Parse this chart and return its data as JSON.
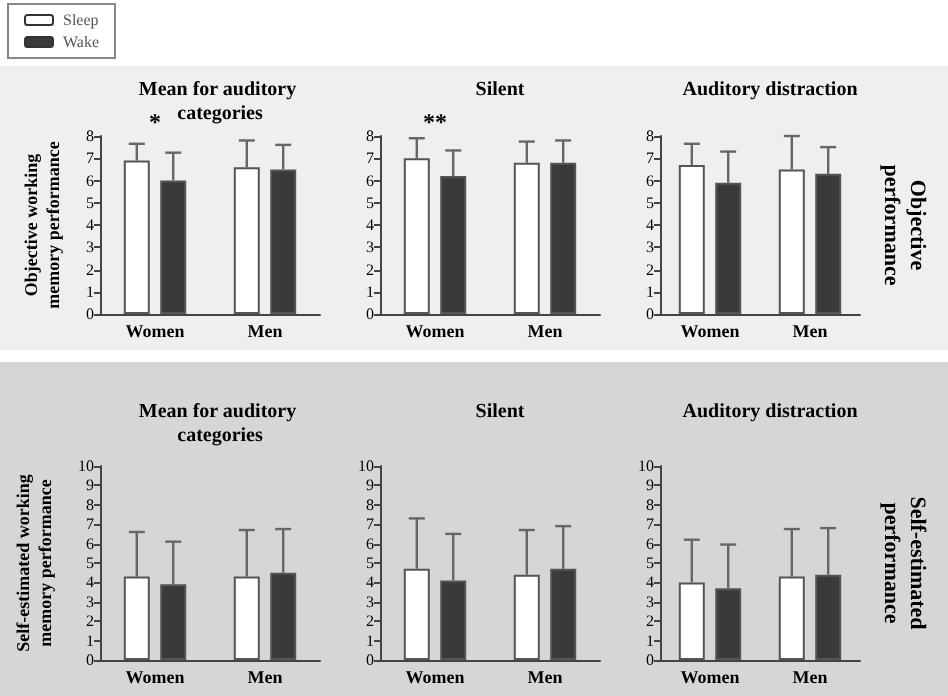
{
  "chart_data": [
    {
      "type": "bar",
      "title": "Mean for auditory categories",
      "ylabel": "Objective working memory performance",
      "categories": [
        "Women",
        "Men"
      ],
      "legend": "top left",
      "ylim": [
        0,
        8
      ],
      "yticks": [
        0,
        1,
        2,
        3,
        4,
        5,
        6,
        7,
        8
      ],
      "annotations": [
        "*"
      ],
      "series": [
        {
          "name": "Sleep",
          "color": "#ffffff",
          "values": [
            6.9,
            6.6
          ],
          "errors": [
            [
              6.9,
              7.65
            ],
            [
              6.6,
              7.8
            ]
          ]
        },
        {
          "name": "Wake",
          "color": "#3a3a3a",
          "values": [
            6.0,
            6.5
          ],
          "errors": [
            [
              6.0,
              7.25
            ],
            [
              6.5,
              7.6
            ]
          ]
        }
      ]
    },
    {
      "type": "bar",
      "title": "Silent",
      "categories": [
        "Women",
        "Men"
      ],
      "ylim": [
        0,
        8
      ],
      "yticks": [
        0,
        1,
        2,
        3,
        4,
        5,
        6,
        7,
        8
      ],
      "annotations": [
        "**"
      ],
      "series": [
        {
          "color": "#ffffff",
          "values": [
            7.0,
            6.8
          ],
          "errors": [
            [
              7.0,
              7.9
            ],
            [
              6.8,
              7.75
            ]
          ]
        },
        {
          "color": "#3a3a3a",
          "values": [
            6.2,
            6.8
          ],
          "errors": [
            [
              6.2,
              7.35
            ],
            [
              6.8,
              7.8
            ]
          ]
        }
      ]
    },
    {
      "type": "bar",
      "title": "Auditory distraction",
      "categories": [
        "Women",
        "Men"
      ],
      "ylim": [
        0,
        8
      ],
      "yticks": [
        0,
        1,
        2,
        3,
        4,
        5,
        6,
        7,
        8
      ],
      "annotations": [
        "Objective performance"
      ],
      "series": [
        {
          "color": "#ffffff",
          "values": [
            6.7,
            6.5
          ],
          "errors": [
            [
              6.7,
              7.65
            ],
            [
              6.5,
              8.0
            ]
          ]
        },
        {
          "color": "#3a3a3a",
          "values": [
            5.9,
            6.3
          ],
          "errors": [
            [
              5.9,
              7.3
            ],
            [
              6.3,
              7.5
            ]
          ]
        }
      ]
    },
    {
      "type": "bar",
      "title": "Mean for auditory categories",
      "ylabel": "Self-estimated working memory performance",
      "categories": [
        "Women",
        "Men"
      ],
      "ylim": [
        0,
        10
      ],
      "yticks": [
        0,
        1,
        2,
        3,
        4,
        5,
        6,
        7,
        8,
        9,
        10
      ],
      "series": [
        {
          "color": "#ffffff",
          "values": [
            4.3,
            4.3
          ],
          "errors": [
            [
              4.3,
              6.6
            ],
            [
              4.3,
              6.7
            ]
          ]
        },
        {
          "color": "#3a3a3a",
          "values": [
            3.9,
            4.5
          ],
          "errors": [
            [
              3.9,
              6.1
            ],
            [
              4.5,
              6.75
            ]
          ]
        }
      ]
    },
    {
      "type": "bar",
      "title": "Silent",
      "categories": [
        "Women",
        "Men"
      ],
      "ylim": [
        0,
        10
      ],
      "yticks": [
        0,
        1,
        2,
        3,
        4,
        5,
        6,
        7,
        8,
        9,
        10
      ],
      "series": [
        {
          "color": "#ffffff",
          "values": [
            4.7,
            4.4
          ],
          "errors": [
            [
              4.7,
              7.3
            ],
            [
              4.4,
              6.7
            ]
          ]
        },
        {
          "color": "#3a3a3a",
          "values": [
            4.1,
            4.7
          ],
          "errors": [
            [
              4.1,
              6.5
            ],
            [
              4.7,
              6.9
            ]
          ]
        }
      ]
    },
    {
      "type": "bar",
      "title": "Auditory distraction",
      "categories": [
        "Women",
        "Men"
      ],
      "ylim": [
        0,
        10
      ],
      "yticks": [
        0,
        1,
        2,
        3,
        4,
        5,
        6,
        7,
        8,
        9,
        10
      ],
      "annotations": [
        "Self-estimated performance"
      ],
      "series": [
        {
          "color": "#ffffff",
          "values": [
            4.0,
            4.3
          ],
          "errors": [
            [
              4.0,
              6.2
            ],
            [
              4.3,
              6.75
            ]
          ]
        },
        {
          "color": "#3a3a3a",
          "values": [
            3.7,
            4.4
          ],
          "errors": [
            [
              3.7,
              5.95
            ],
            [
              4.4,
              6.8
            ]
          ]
        }
      ]
    }
  ]
}
